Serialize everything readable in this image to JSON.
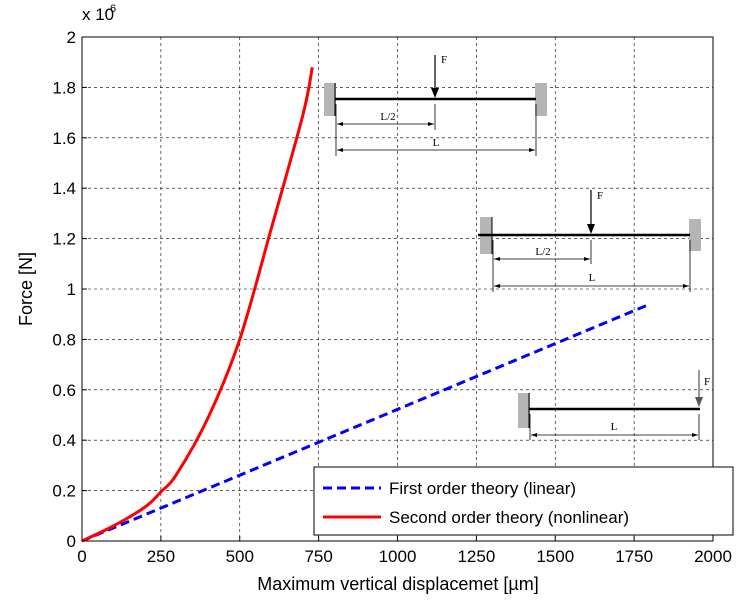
{
  "chart_data": {
    "type": "line",
    "title": "",
    "xlabel": "Maximum vertical displacemet [µm]",
    "ylabel": "Force [N]",
    "xlim": [
      0,
      2000
    ],
    "ylim": [
      0,
      2000000
    ],
    "y_scale_note": "x 10",
    "y_scale_exponent": "6",
    "x_ticks": [
      0,
      250,
      500,
      750,
      1000,
      1250,
      1500,
      1750,
      2000
    ],
    "y_ticks": [
      0,
      0.2,
      0.4,
      0.6,
      0.8,
      1,
      1.2,
      1.4,
      1.6,
      1.8,
      2
    ],
    "grid": true,
    "legend_position": "bottom-right",
    "series": [
      {
        "name": "First order theory (linear)",
        "color": "#0000ff",
        "style": "dashed",
        "x": [
          0,
          1800
        ],
        "y": [
          0,
          940000
        ]
      },
      {
        "name": "Second order theory (nonlinear)",
        "color": "#ff0000",
        "style": "solid",
        "x": [
          0,
          100,
          200,
          250,
          300,
          400,
          500,
          600,
          700,
          730
        ],
        "y": [
          0,
          60000,
          135000,
          195000,
          265000,
          490000,
          800000,
          1240000,
          1690000,
          1880000
        ]
      }
    ],
    "annotations": {
      "force_label": "F",
      "half_length_label": "L/2",
      "length_label": "L"
    }
  }
}
